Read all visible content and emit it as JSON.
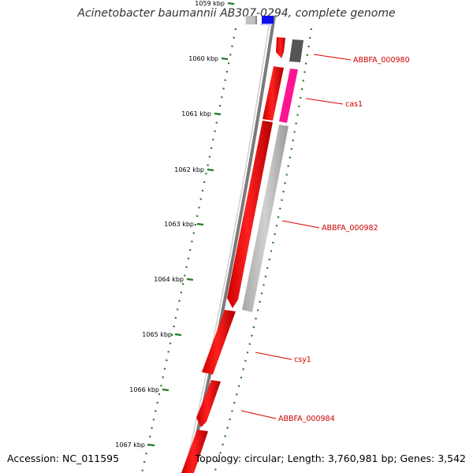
{
  "title": "Acinetobacter baumannii AB307-0294, complete genome",
  "footer": {
    "accession": "Accession: NC_011595",
    "summary": "Topology: circular; Length: 3,760,981 bp; Genes: 3,542"
  },
  "axis": {
    "unit": "kbp",
    "ticks": [
      "1059 kbp",
      "1060 kbp",
      "1061 kbp",
      "1062 kbp",
      "1063 kbp",
      "1064 kbp",
      "1065 kbp",
      "1066 kbp",
      "1067 kbp"
    ]
  },
  "genes": [
    {
      "name": "ABBFA_000980",
      "strand": "reverse",
      "color": "#555555"
    },
    {
      "name": "cas1",
      "strand": "reverse",
      "color": "#ff1493"
    },
    {
      "name": "ABBFA_000982",
      "strand": "reverse",
      "color": "#bbbbbb"
    },
    {
      "name": "csy1",
      "strand": "forward",
      "color": "#ff0000"
    },
    {
      "name": "ABBFA_000984",
      "strand": "forward",
      "color": "#ff0000"
    }
  ],
  "colors": {
    "forward_strand": "#ff0000",
    "reverse_strand": "#bbbbbb",
    "highlight": "#ff1493",
    "backbone": "#808080",
    "gc_dots": "#1e7b1e",
    "label_line": "#dd0000"
  }
}
